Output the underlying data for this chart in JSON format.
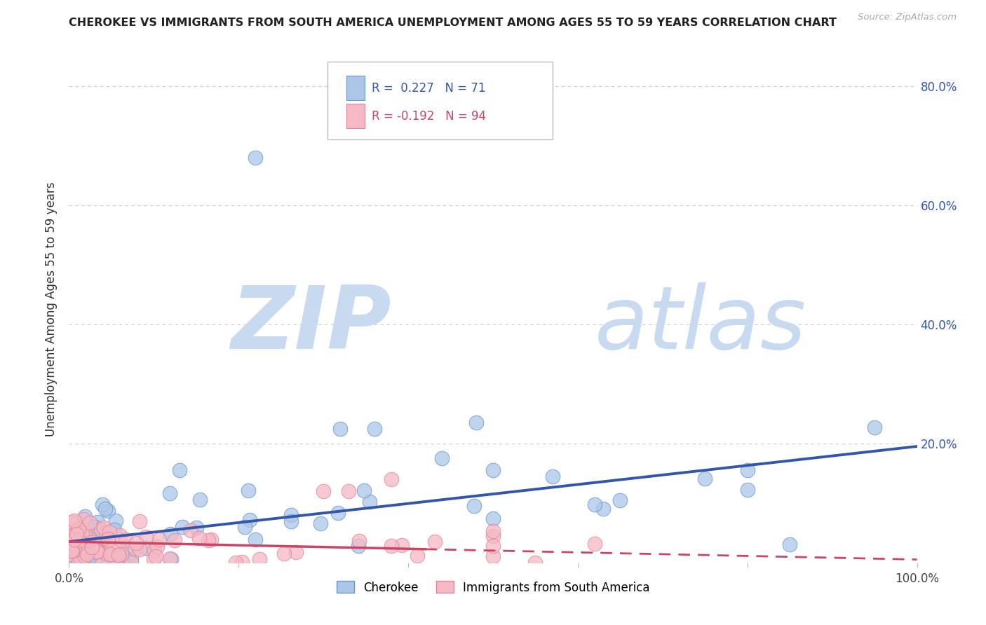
{
  "title": "CHEROKEE VS IMMIGRANTS FROM SOUTH AMERICA UNEMPLOYMENT AMONG AGES 55 TO 59 YEARS CORRELATION CHART",
  "source": "Source: ZipAtlas.com",
  "ylabel": "Unemployment Among Ages 55 to 59 years",
  "xlim": [
    0,
    1.0
  ],
  "ylim": [
    0,
    0.85
  ],
  "xticks": [
    0.0,
    0.2,
    0.4,
    0.6,
    0.8,
    1.0
  ],
  "xticklabels": [
    "0.0%",
    "",
    "",
    "",
    "",
    "100.0%"
  ],
  "yticks": [
    0.0,
    0.2,
    0.4,
    0.6,
    0.8
  ],
  "right_ytick_labels": [
    "",
    "20.0%",
    "40.0%",
    "60.0%",
    "80.0%"
  ],
  "grid_color": "#cccccc",
  "bg_color": "#ffffff",
  "blue_scatter_color": "#adc6e8",
  "blue_edge_color": "#6699cc",
  "blue_line_color": "#3355aa",
  "pink_scatter_color": "#f5b8c4",
  "pink_edge_color": "#dd8899",
  "pink_line_color": "#cc4466",
  "R_blue": 0.227,
  "N_blue": 71,
  "R_pink": -0.192,
  "N_pink": 94,
  "watermark_zip_color": "#c8daf0",
  "watermark_atlas_color": "#c8daf0",
  "legend_label_blue": "Cherokee",
  "legend_label_pink": "Immigrants from South America",
  "blue_trend": [
    0.035,
    0.195
  ],
  "pink_trend_solid_end": 0.42,
  "pink_trend": [
    0.035,
    0.005
  ]
}
